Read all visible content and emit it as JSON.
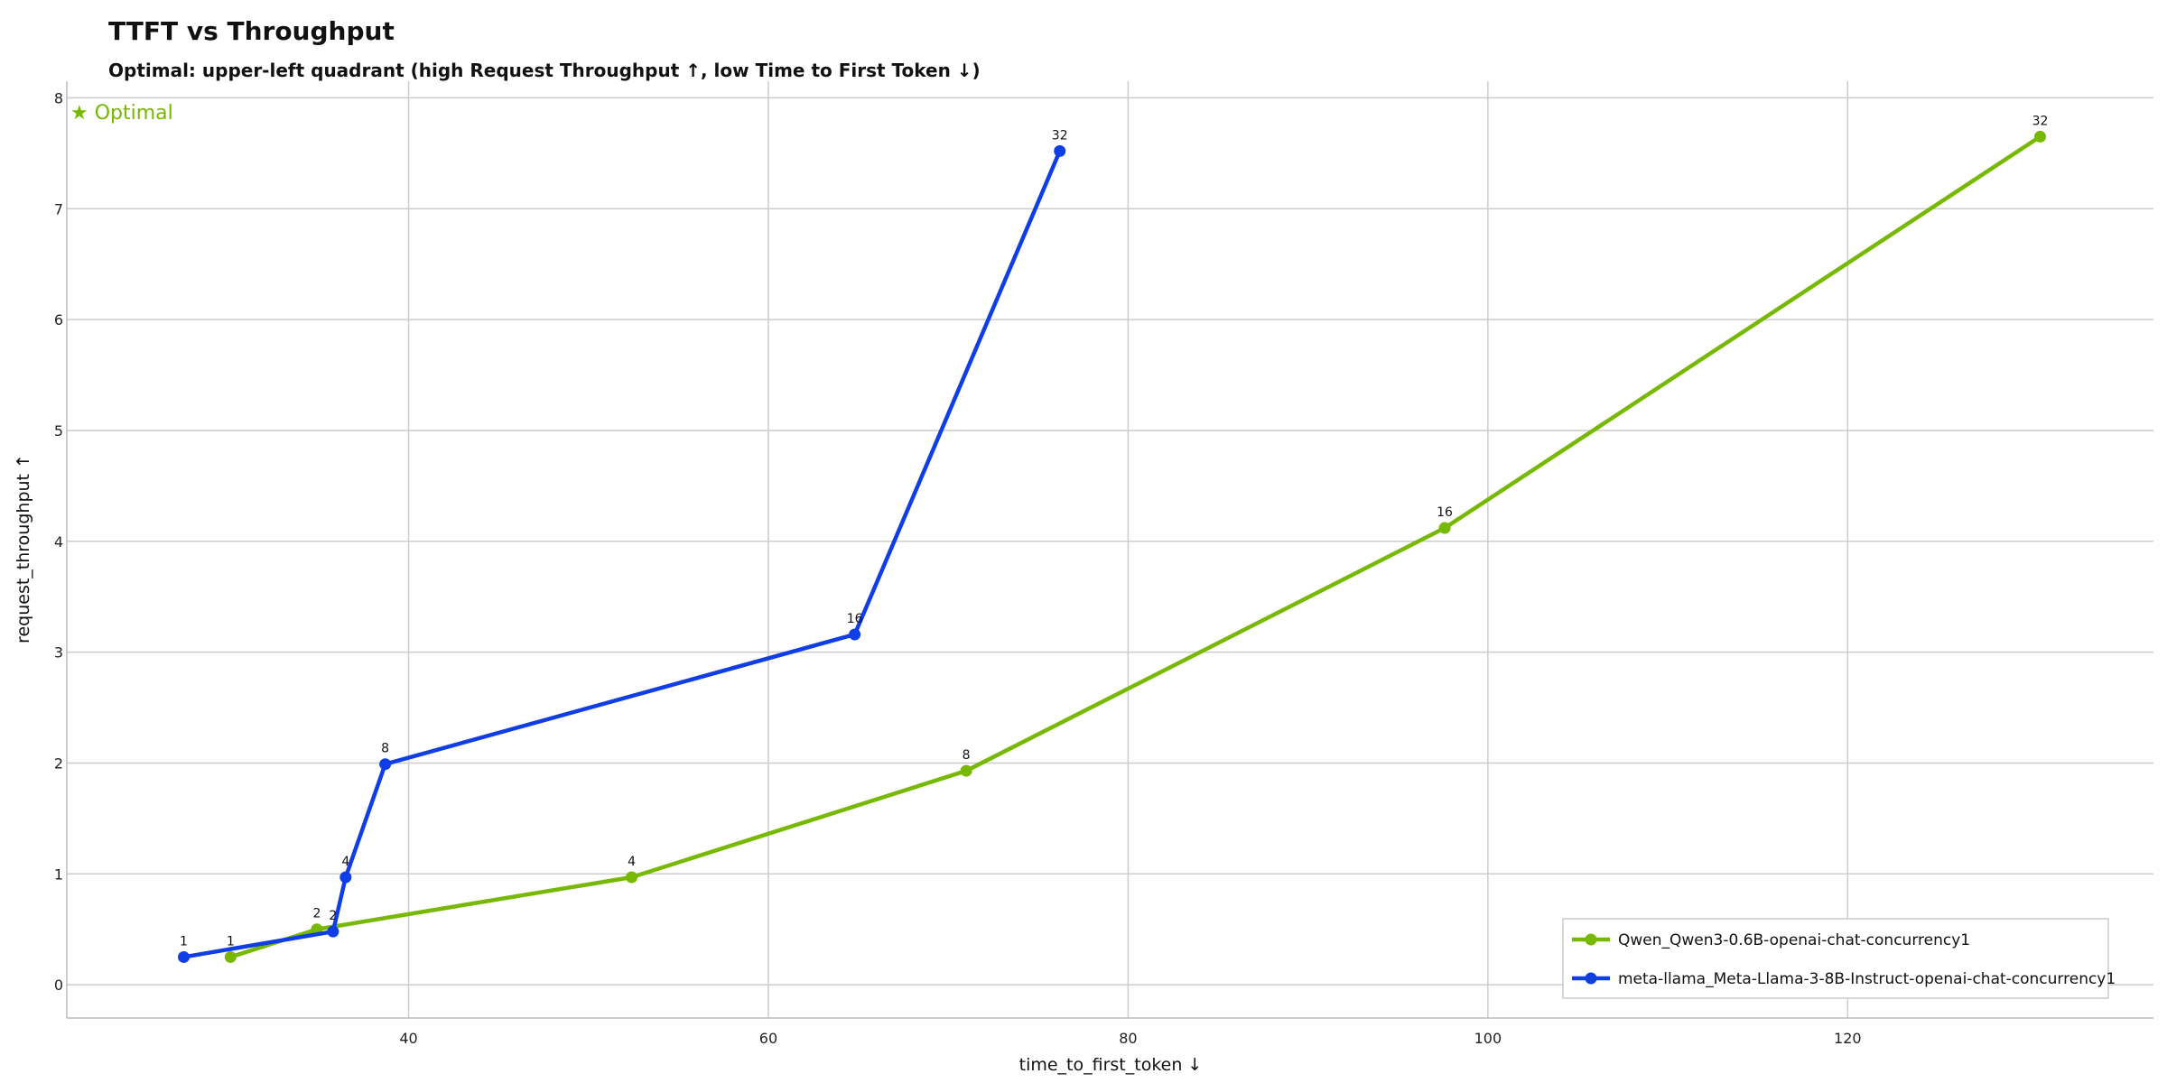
{
  "chart_data": {
    "type": "line",
    "title": "TTFT vs Throughput",
    "subtitle": "Optimal: upper-left quadrant (high Request Throughput ↑, low Time to First Token ↓)",
    "xlabel": "time_to_first_token ↓",
    "ylabel": "request_throughput ↑",
    "xlim": [
      21,
      137
    ],
    "ylim": [
      -0.3,
      8.15
    ],
    "xticks": [
      40,
      60,
      80,
      100,
      120
    ],
    "yticks": [
      0,
      1,
      2,
      3,
      4,
      5,
      6,
      7,
      8
    ],
    "grid": true,
    "legend_position": "bottom-right",
    "annotation": "★ Optimal",
    "annotation_color": "#76b900",
    "series": [
      {
        "name": "Qwen_Qwen3-0.6B-openai-chat-concurrency1",
        "color": "#76b900",
        "points": [
          {
            "x": 30.1,
            "y": 0.25,
            "label": "1"
          },
          {
            "x": 34.9,
            "y": 0.5,
            "label": "2"
          },
          {
            "x": 52.4,
            "y": 0.97,
            "label": "4"
          },
          {
            "x": 71.0,
            "y": 1.93,
            "label": "8"
          },
          {
            "x": 97.6,
            "y": 4.12,
            "label": "16"
          },
          {
            "x": 130.7,
            "y": 7.65,
            "label": "32"
          }
        ]
      },
      {
        "name": "meta-llama_Meta-Llama-3-8B-Instruct-openai-chat-concurrency1",
        "color": "#0f3de6",
        "points": [
          {
            "x": 27.5,
            "y": 0.25,
            "label": "1"
          },
          {
            "x": 35.8,
            "y": 0.48,
            "label": "2"
          },
          {
            "x": 36.5,
            "y": 0.97,
            "label": "4"
          },
          {
            "x": 38.7,
            "y": 1.99,
            "label": "8"
          },
          {
            "x": 64.8,
            "y": 3.16,
            "label": "16"
          },
          {
            "x": 76.2,
            "y": 7.52,
            "label": "32"
          }
        ]
      }
    ]
  }
}
